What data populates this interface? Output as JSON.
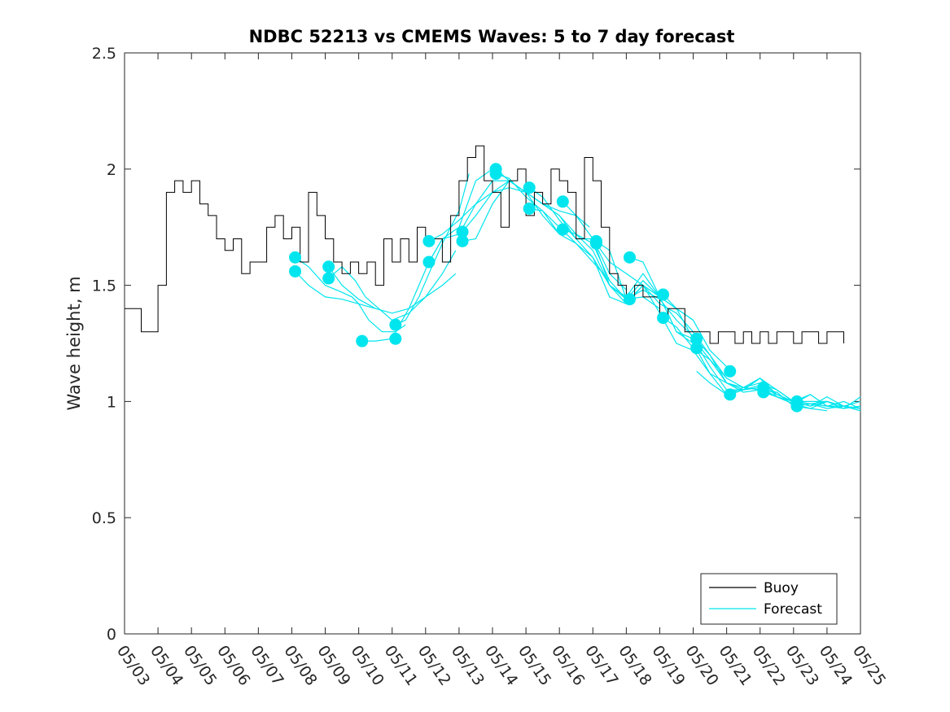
{
  "chart_data": {
    "type": "line",
    "title": "NDBC 52213 vs CMEMS Waves: 5 to 7 day forecast",
    "xlabel": "",
    "ylabel": "Wave height, m",
    "xlim": [
      0,
      22
    ],
    "ylim": [
      0,
      2.5
    ],
    "yticks": [
      0,
      0.5,
      1,
      1.5,
      2,
      2.5
    ],
    "ytick_labels": [
      "0",
      "0.5",
      "1",
      "1.5",
      "2",
      "2.5"
    ],
    "xtick_labels": [
      "05/03",
      "05/04",
      "05/05",
      "05/06",
      "05/07",
      "05/08",
      "05/09",
      "05/10",
      "05/11",
      "05/12",
      "05/13",
      "05/14",
      "05/15",
      "05/16",
      "05/17",
      "05/18",
      "05/19",
      "05/20",
      "05/21",
      "05/22",
      "05/23",
      "05/24",
      "05/25"
    ],
    "legend": {
      "position": "bottom-right",
      "entries": [
        {
          "name": "Buoy",
          "color": "#000000"
        },
        {
          "name": "Forecast",
          "color": "#00e5ee"
        }
      ]
    },
    "series": [
      {
        "name": "Buoy",
        "color": "#000000",
        "x": [
          0.0,
          0.25,
          0.5,
          0.75,
          1.0,
          1.25,
          1.5,
          1.75,
          2.0,
          2.25,
          2.5,
          2.75,
          3.0,
          3.25,
          3.5,
          3.75,
          4.0,
          4.25,
          4.5,
          4.75,
          5.0,
          5.25,
          5.5,
          5.75,
          6.0,
          6.25,
          6.5,
          6.75,
          7.0,
          7.25,
          7.5,
          7.75,
          8.0,
          8.25,
          8.5,
          8.75,
          9.0,
          9.25,
          9.5,
          9.75,
          10.0,
          10.25,
          10.5,
          10.75,
          11.0,
          11.25,
          11.5,
          11.75,
          12.0,
          12.25,
          12.5,
          12.75,
          13.0,
          13.25,
          13.5,
          13.75,
          14.0,
          14.25,
          14.5,
          14.75,
          15.0,
          15.25,
          15.5,
          15.75,
          16.0,
          16.25,
          16.5,
          16.75,
          17.0,
          17.25,
          17.5,
          17.75,
          18.0,
          18.25,
          18.5,
          18.75,
          19.0,
          19.25,
          19.5,
          19.75,
          20.0,
          20.25,
          20.5,
          20.75,
          21.0,
          21.25,
          21.5
        ],
        "values": [
          1.4,
          1.4,
          1.3,
          1.3,
          1.5,
          1.9,
          1.95,
          1.9,
          1.95,
          1.85,
          1.8,
          1.7,
          1.65,
          1.7,
          1.55,
          1.6,
          1.6,
          1.75,
          1.8,
          1.7,
          1.75,
          1.6,
          1.9,
          1.8,
          1.7,
          1.6,
          1.55,
          1.6,
          1.55,
          1.6,
          1.5,
          1.7,
          1.6,
          1.7,
          1.6,
          1.75,
          1.7,
          1.7,
          1.6,
          1.8,
          1.95,
          2.05,
          2.1,
          1.95,
          1.9,
          1.75,
          1.95,
          2.0,
          1.8,
          1.9,
          1.85,
          2.0,
          1.95,
          1.9,
          1.7,
          2.05,
          1.95,
          1.75,
          1.55,
          1.5,
          1.45,
          1.5,
          1.45,
          1.45,
          1.35,
          1.4,
          1.4,
          1.3,
          1.3,
          1.3,
          1.25,
          1.3,
          1.3,
          1.25,
          1.3,
          1.25,
          1.3,
          1.25,
          1.3,
          1.3,
          1.25,
          1.3,
          1.3,
          1.25,
          1.3,
          1.3,
          1.25
        ]
      },
      {
        "name": "Forecast",
        "color": "#00e5ee",
        "runs": [
          {
            "x": [
              5.1,
              5.5,
              6.0,
              6.5,
              6.8,
              7.0,
              7.3,
              7.7,
              8.1,
              8.4
            ],
            "values": [
              1.62,
              1.58,
              1.5,
              1.47,
              1.45,
              1.42,
              1.35,
              1.3,
              1.3,
              1.33
            ]
          },
          {
            "x": [
              5.1,
              5.5,
              6.0,
              6.5,
              7.0,
              7.5
            ],
            "values": [
              1.56,
              1.5,
              1.45,
              1.44,
              1.42,
              1.4
            ]
          },
          {
            "x": [
              6.1,
              6.5,
              7.0,
              7.5,
              8.0,
              8.5,
              9.0,
              9.5,
              9.9
            ],
            "values": [
              1.58,
              1.5,
              1.44,
              1.4,
              1.38,
              1.4,
              1.45,
              1.55,
              1.65
            ]
          },
          {
            "x": [
              6.1,
              6.5,
              6.9,
              7.2,
              7.6,
              8.0,
              8.5,
              9.0,
              9.5,
              9.9
            ],
            "values": [
              1.53,
              1.58,
              1.52,
              1.45,
              1.4,
              1.35,
              1.38,
              1.45,
              1.5,
              1.55
            ]
          },
          {
            "x": [
              7.1,
              7.5,
              8.0,
              8.3,
              8.5,
              8.8,
              9.1,
              9.5,
              10.0,
              10.5,
              11.0
            ],
            "values": [
              1.26,
              1.26,
              1.27,
              1.35,
              1.4,
              1.5,
              1.6,
              1.7,
              1.75,
              1.95,
              2.0
            ]
          },
          {
            "x": [
              8.1,
              8.4,
              8.8,
              9.1,
              9.5,
              10.0,
              10.3
            ],
            "values": [
              1.33,
              1.35,
              1.45,
              1.55,
              1.68,
              1.82,
              1.98
            ]
          },
          {
            "x": [
              9.1,
              9.5,
              10.0,
              10.5,
              11.0,
              11.5,
              12.0,
              12.5,
              13.0,
              13.5,
              13.9
            ],
            "values": [
              1.69,
              1.72,
              1.78,
              1.85,
              1.95,
              1.95,
              1.9,
              1.85,
              1.82,
              1.8,
              1.75
            ]
          },
          {
            "x": [
              9.1,
              9.5,
              10.0,
              10.5,
              11.0,
              11.5,
              12.0
            ],
            "values": [
              1.6,
              1.7,
              1.72,
              1.85,
              1.9,
              1.92,
              1.9
            ]
          },
          {
            "x": [
              10.1,
              10.5,
              11.0,
              11.5,
              12.0,
              12.5,
              13.0,
              13.5,
              14.0,
              14.5,
              15.0
            ],
            "values": [
              1.73,
              1.8,
              1.9,
              1.95,
              1.9,
              1.85,
              1.8,
              1.7,
              1.7,
              1.55,
              1.48
            ]
          },
          {
            "x": [
              10.1,
              10.5,
              11.0,
              11.5,
              12.0,
              12.5,
              13.0
            ],
            "values": [
              1.69,
              1.7,
              1.85,
              1.95,
              1.9,
              1.8,
              1.72
            ]
          },
          {
            "x": [
              11.1,
              11.5,
              12.0,
              12.5,
              13.0,
              13.5,
              14.0,
              14.5,
              15.0,
              15.5,
              16.0,
              16.5,
              17.0
            ],
            "values": [
              2.0,
              1.95,
              1.9,
              1.85,
              1.8,
              1.72,
              1.65,
              1.5,
              1.45,
              1.55,
              1.45,
              1.4,
              1.35
            ]
          },
          {
            "x": [
              11.1,
              11.5,
              12.0,
              12.5,
              13.0,
              13.5,
              14.0,
              14.5
            ],
            "values": [
              1.98,
              1.96,
              1.88,
              1.82,
              1.75,
              1.68,
              1.6,
              1.52
            ]
          },
          {
            "x": [
              12.1,
              12.5,
              13.0,
              13.5,
              14.0,
              14.5,
              15.0,
              15.5,
              16.0,
              16.5,
              17.0,
              17.5,
              18.0
            ],
            "values": [
              1.92,
              1.88,
              1.78,
              1.7,
              1.62,
              1.5,
              1.42,
              1.5,
              1.45,
              1.4,
              1.35,
              1.22,
              1.15
            ]
          },
          {
            "x": [
              12.1,
              12.5,
              13.0,
              13.5,
              14.0,
              14.5,
              15.0
            ],
            "values": [
              1.83,
              1.82,
              1.72,
              1.68,
              1.62,
              1.45,
              1.42
            ]
          },
          {
            "x": [
              13.1,
              13.5,
              14.0,
              14.5,
              15.0,
              15.5,
              16.0,
              16.5,
              17.0,
              17.5,
              18.0,
              18.5,
              19.0
            ],
            "values": [
              1.86,
              1.8,
              1.7,
              1.5,
              1.44,
              1.48,
              1.44,
              1.35,
              1.28,
              1.2,
              1.08,
              1.05,
              1.07
            ]
          },
          {
            "x": [
              13.1,
              13.5,
              14.0,
              14.5,
              15.0,
              15.5,
              16.0
            ],
            "values": [
              1.74,
              1.72,
              1.68,
              1.52,
              1.44,
              1.45,
              1.4
            ]
          },
          {
            "x": [
              14.1,
              14.5,
              15.0,
              15.5,
              16.0,
              16.5,
              17.0,
              17.5,
              18.0,
              18.5,
              19.0,
              19.5,
              20.0
            ],
            "values": [
              1.69,
              1.65,
              1.44,
              1.52,
              1.45,
              1.3,
              1.25,
              1.12,
              1.08,
              1.06,
              1.05,
              1.02,
              1.0
            ]
          },
          {
            "x": [
              14.1,
              14.5,
              15.0,
              15.5,
              16.0,
              16.5,
              17.0,
              17.5,
              18.0
            ],
            "values": [
              1.68,
              1.6,
              1.55,
              1.5,
              1.42,
              1.38,
              1.3,
              1.2,
              1.1
            ]
          },
          {
            "x": [
              15.1,
              15.5,
              16.0,
              16.5,
              17.0,
              17.5,
              18.0,
              18.5,
              19.0,
              19.5,
              20.0,
              20.5,
              21.0
            ],
            "values": [
              1.62,
              1.6,
              1.45,
              1.3,
              1.27,
              1.15,
              1.05,
              1.05,
              1.1,
              1.05,
              1.0,
              1.0,
              1.0
            ]
          },
          {
            "x": [
              15.1,
              15.5,
              16.0,
              16.5,
              17.0,
              17.5,
              18.0,
              18.5,
              19.0,
              19.5,
              20.0,
              20.5,
              21.0
            ],
            "values": [
              1.44,
              1.5,
              1.38,
              1.25,
              1.22,
              1.12,
              1.03,
              1.05,
              1.1,
              1.02,
              0.99,
              0.97,
              0.96
            ]
          },
          {
            "x": [
              16.1,
              16.5,
              17.0,
              17.5,
              18.0,
              18.5,
              19.0,
              19.5,
              20.0,
              20.5,
              21.0,
              21.5,
              22.0
            ],
            "values": [
              1.46,
              1.4,
              1.27,
              1.18,
              1.1,
              1.06,
              1.08,
              1.05,
              1.0,
              0.98,
              1.02,
              0.98,
              1.0
            ]
          },
          {
            "x": [
              16.1,
              16.5,
              17.0,
              17.5,
              18.0,
              18.5,
              19.0,
              19.5,
              20.0,
              20.5,
              21.0,
              21.5,
              22.0
            ],
            "values": [
              1.36,
              1.32,
              1.23,
              1.18,
              1.08,
              1.04,
              1.05,
              1.04,
              0.98,
              0.97,
              1.0,
              0.98,
              0.96
            ]
          },
          {
            "x": [
              17.1,
              17.5,
              18.0,
              18.5,
              19.0,
              19.5,
              20.0,
              20.5,
              21.0,
              21.5,
              22.0
            ],
            "values": [
              1.13,
              1.08,
              1.03,
              1.06,
              1.1,
              1.03,
              1.0,
              1.03,
              0.98,
              0.97,
              1.02
            ]
          },
          {
            "x": [
              18.1,
              18.5,
              19.0,
              19.5,
              20.0,
              20.5,
              21.0,
              21.5,
              22.0
            ],
            "values": [
              1.03,
              1.05,
              1.06,
              1.02,
              0.99,
              1.03,
              0.98,
              1.0,
              0.97
            ]
          },
          {
            "x": [
              19.1,
              19.5,
              20.0,
              20.5,
              21.0,
              21.5,
              22.0
            ],
            "values": [
              1.06,
              1.03,
              1.0,
              0.98,
              1.0,
              0.98,
              0.96
            ]
          },
          {
            "x": [
              19.1,
              19.5,
              20.0,
              20.5,
              21.0,
              21.5,
              22.0
            ],
            "values": [
              1.04,
              1.02,
              1.0,
              0.99,
              0.97,
              0.98,
              0.97
            ]
          },
          {
            "x": [
              20.1,
              20.5,
              21.0,
              21.5,
              22.0
            ],
            "values": [
              1.0,
              0.99,
              0.98,
              0.98,
              0.97
            ]
          },
          {
            "x": [
              20.1,
              20.5,
              21.0,
              21.5,
              22.0
            ],
            "values": [
              0.98,
              0.99,
              1.0,
              0.97,
              0.98
            ]
          }
        ],
        "markers": {
          "x": [
            5.1,
            5.1,
            6.1,
            6.1,
            7.1,
            8.1,
            8.1,
            9.1,
            9.1,
            10.1,
            10.1,
            11.1,
            11.1,
            12.1,
            12.1,
            13.1,
            13.1,
            14.1,
            14.1,
            15.1,
            15.1,
            16.1,
            16.1,
            17.1,
            17.1,
            18.1,
            18.1,
            19.1,
            19.1,
            20.1,
            20.1
          ],
          "values": [
            1.62,
            1.56,
            1.58,
            1.53,
            1.26,
            1.33,
            1.27,
            1.69,
            1.6,
            1.73,
            1.69,
            2.0,
            1.98,
            1.92,
            1.83,
            1.86,
            1.74,
            1.69,
            1.68,
            1.62,
            1.44,
            1.46,
            1.36,
            1.27,
            1.23,
            1.13,
            1.03,
            1.06,
            1.04,
            1.0,
            0.98
          ]
        }
      }
    ]
  }
}
